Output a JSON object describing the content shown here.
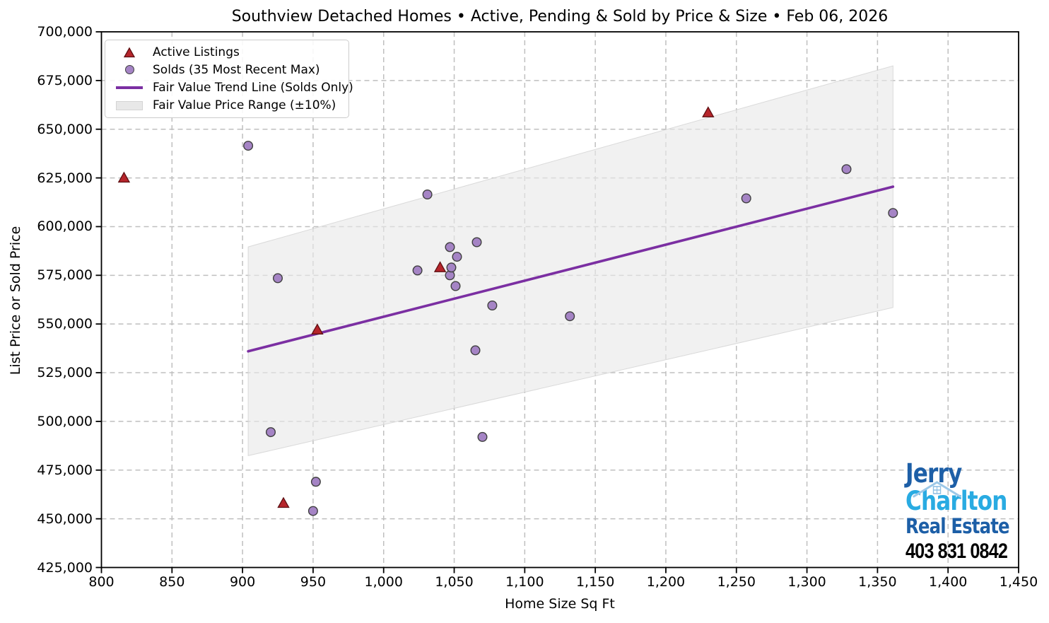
{
  "title": "Southview Detached Homes • Active, Pending & Sold by Price & Size • Feb 06, 2026",
  "chart_data": {
    "type": "scatter",
    "xlabel": "Home Size Sq Ft",
    "ylabel": "List Price or Sold Price",
    "xlim": [
      800,
      1450
    ],
    "ylim": [
      425000,
      700000
    ],
    "x_ticks": [
      800,
      850,
      900,
      950,
      1000,
      1050,
      1100,
      1150,
      1200,
      1250,
      1300,
      1350,
      1400,
      1450
    ],
    "y_ticks": [
      425000,
      450000,
      475000,
      500000,
      525000,
      550000,
      575000,
      600000,
      625000,
      650000,
      675000,
      700000
    ],
    "grid": true,
    "legend_position": "upper-left",
    "series": [
      {
        "name": "Active Listings",
        "marker": "triangle",
        "fill": "#b6252b",
        "edge": "#5e0f12",
        "points": [
          [
            816,
            625000
          ],
          [
            929,
            458000
          ],
          [
            953,
            547000
          ],
          [
            1040,
            579000
          ],
          [
            1230,
            658500
          ]
        ]
      },
      {
        "name": "Solds (35 Most Recent Max)",
        "marker": "circle",
        "fill": "#a584c5",
        "edge": "#3f3f3f",
        "points": [
          [
            904,
            641500
          ],
          [
            920,
            494500
          ],
          [
            925,
            573500
          ],
          [
            950,
            454000
          ],
          [
            952,
            469000
          ],
          [
            1024,
            577500
          ],
          [
            1031,
            616500
          ],
          [
            1047,
            589500
          ],
          [
            1047,
            575000
          ],
          [
            1048,
            579000
          ],
          [
            1051,
            569500
          ],
          [
            1052,
            584500
          ],
          [
            1065,
            536500
          ],
          [
            1066,
            592000
          ],
          [
            1070,
            492000
          ],
          [
            1077,
            559500
          ],
          [
            1132,
            554000
          ],
          [
            1257,
            614500
          ],
          [
            1328,
            629500
          ],
          [
            1361,
            607000
          ]
        ]
      },
      {
        "name": "Fair Value Trend Line (Solds Only)",
        "marker": "line",
        "color": "#7b2fa2",
        "points": [
          [
            904,
            536000
          ],
          [
            1361,
            620500
          ]
        ]
      },
      {
        "name": "Fair Value Price Range (±10%)",
        "marker": "band",
        "color": "#e8e8e8",
        "band_pct": 10,
        "upper": [
          [
            904,
            589600
          ],
          [
            1361,
            682550
          ]
        ],
        "lower": [
          [
            904,
            482400
          ],
          [
            1361,
            558450
          ]
        ]
      }
    ]
  },
  "branding": {
    "name_line1": "Jerry",
    "name_line2": "Charlton",
    "tagline": "Real Estate",
    "phone": "403 831 0842",
    "dark_blue": "#1d5fa7",
    "light_blue": "#29abe2"
  }
}
